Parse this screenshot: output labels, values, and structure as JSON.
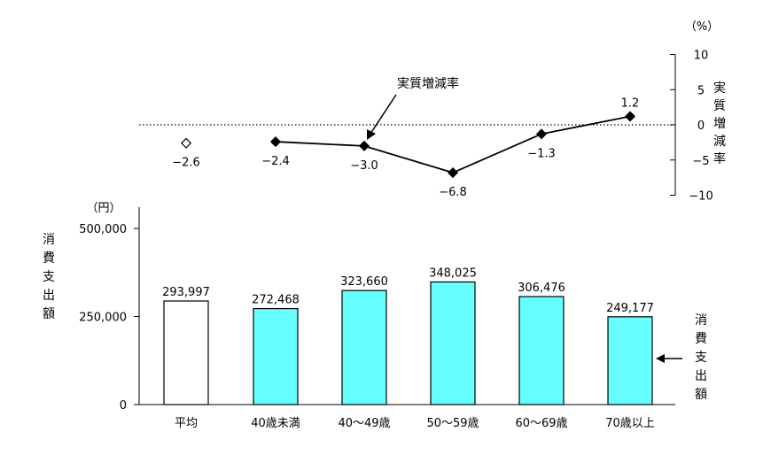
{
  "chart_data": [
    {
      "type": "line",
      "series_label": "実質増減率",
      "ylabel": "実質増減率",
      "unit": "（%）",
      "ylim": [
        -10,
        10
      ],
      "yticks": [
        10,
        5,
        0,
        -5,
        -10
      ],
      "ytick_labels": [
        "10",
        "5",
        "0",
        "−5",
        "−10"
      ],
      "categories": [
        "平均",
        "40歳未満",
        "40～49歳",
        "50～59歳",
        "60～69歳",
        "70歳以上"
      ],
      "values": [
        -2.6,
        -2.4,
        -3.0,
        -6.8,
        -1.3,
        1.2
      ],
      "value_labels": [
        "−2.6",
        "−2.4",
        "−3.0",
        "−6.8",
        "−1.3",
        "1.2"
      ],
      "first_point_hollow": true,
      "zero_line": "dotted"
    },
    {
      "type": "bar",
      "ylabel": "消費支出額",
      "unit": "（円）",
      "ylim": [
        0,
        580000
      ],
      "yticks": [
        0,
        250000,
        500000
      ],
      "ytick_labels": [
        "0",
        "250,000",
        "500,000"
      ],
      "categories": [
        "平均",
        "40歳未満",
        "40～49歳",
        "50～59歳",
        "60～69歳",
        "70歳以上"
      ],
      "values": [
        293997,
        272468,
        323660,
        348025,
        306476,
        249177
      ],
      "value_labels": [
        "293,997",
        "272,468",
        "323,660",
        "348,025",
        "306,476",
        "249,177"
      ],
      "bar_colors": [
        "#ffffff",
        "#66ffff",
        "#66ffff",
        "#66ffff",
        "#66ffff",
        "#66ffff"
      ],
      "series_label": "消費支出額"
    }
  ]
}
